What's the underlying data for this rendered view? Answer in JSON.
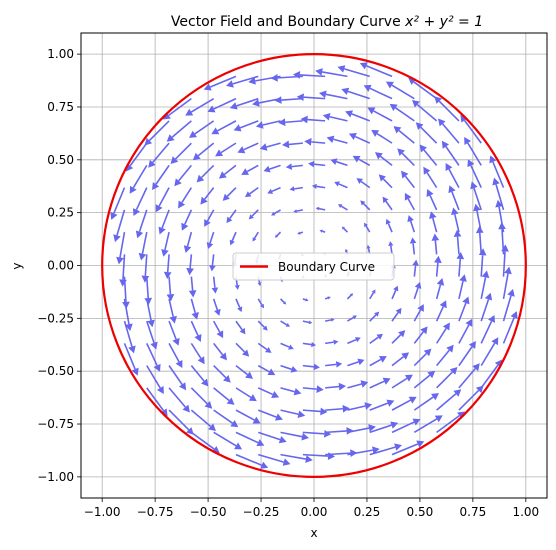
{
  "chart_data": {
    "type": "vector-field",
    "title_main": "Vector Field and Boundary Curve ",
    "title_math": "x² + y² = 1",
    "xlabel": "x",
    "ylabel": "y",
    "xlim": [
      -1.1,
      1.1
    ],
    "ylim": [
      -1.1,
      1.1
    ],
    "xticks": [
      -1.0,
      -0.75,
      -0.5,
      -0.25,
      0.0,
      0.25,
      0.5,
      0.75,
      1.0
    ],
    "yticks": [
      -1.0,
      -0.75,
      -0.5,
      -0.25,
      0.0,
      0.25,
      0.5,
      0.75,
      1.0
    ],
    "xtick_labels": [
      "−1.00",
      "−0.75",
      "−0.50",
      "−0.25",
      "0.00",
      "0.25",
      "0.50",
      "0.75",
      "1.00"
    ],
    "ytick_labels": [
      "−1.00",
      "−0.75",
      "−0.50",
      "−0.25",
      "0.00",
      "0.25",
      "0.50",
      "0.75",
      "1.00"
    ],
    "grid": true,
    "field": {
      "u": "-y",
      "v": "x",
      "grid_x_range": [
        -1.0,
        1.0
      ],
      "grid_y_range": [
        -1.0,
        1.0
      ],
      "grid_count": 20,
      "masked_outside_radius": 1.0,
      "color": "#6666ee"
    },
    "boundary": {
      "name": "Boundary Curve",
      "center": [
        0,
        0
      ],
      "radius": 1.0,
      "color": "#ee0000"
    },
    "legend": {
      "placement": "center",
      "entries": [
        "Boundary Curve"
      ]
    }
  }
}
